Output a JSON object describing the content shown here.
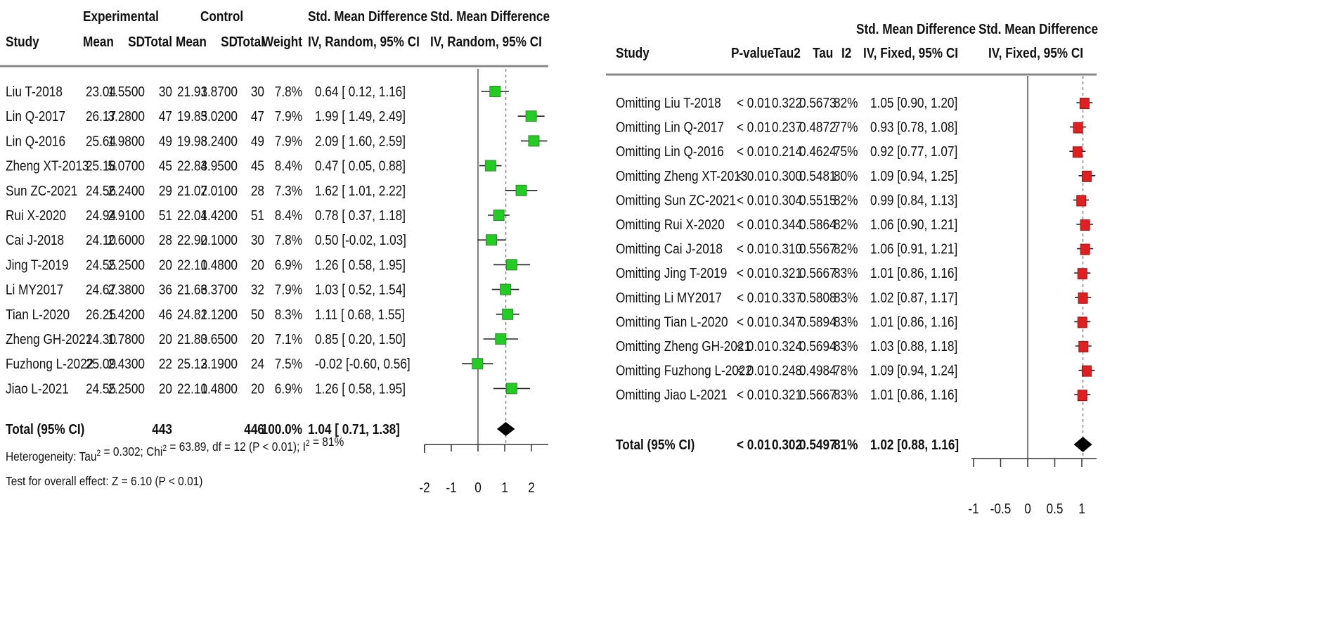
{
  "left": {
    "headers": {
      "experimental": "Experimental",
      "control": "Control",
      "smd_top": "Std. Mean Difference",
      "smd_sub": "IV, Random, 95% CI",
      "plot_top": "Std. Mean Difference",
      "plot_sub": "IV, Random, 95% CI",
      "study": "Study",
      "mean": "Mean",
      "sd": "SD",
      "total": "Total",
      "c_mean": "Mean",
      "c_sd": "SD",
      "c_total": "Total",
      "weight": "Weight"
    },
    "studies": [
      {
        "study": "Liu T-2018",
        "e_mean": "23.04",
        "e_sd": "1.5500",
        "e_n": "30",
        "c_mean": "21.93",
        "c_sd": "1.8700",
        "c_n": "30",
        "weight": "7.8%",
        "ci_text": "0.64 [ 0.12, 1.16]",
        "smd": 0.64,
        "lo": 0.12,
        "hi": 1.16
      },
      {
        "study": "Lin Q-2017",
        "e_mean": "26.17",
        "e_sd": "3.2800",
        "e_n": "47",
        "c_mean": "19.85",
        "c_sd": "3.0200",
        "c_n": "47",
        "weight": "7.9%",
        "ci_text": "1.99 [ 1.49, 2.49]",
        "smd": 1.99,
        "lo": 1.49,
        "hi": 2.49
      },
      {
        "study": "Lin Q-2016",
        "e_mean": "25.64",
        "e_sd": "1.9800",
        "e_n": "49",
        "c_mean": "19.98",
        "c_sd": "3.2400",
        "c_n": "49",
        "weight": "7.9%",
        "ci_text": "2.09 [ 1.60, 2.59]",
        "smd": 2.09,
        "lo": 1.6,
        "hi": 2.59
      },
      {
        "study": "Zheng XT-2013",
        "e_mean": "25.18",
        "e_sd": "5.0700",
        "e_n": "45",
        "c_mean": "22.83",
        "c_sd": "4.9500",
        "c_n": "45",
        "weight": "8.4%",
        "ci_text": "0.47 [ 0.05, 0.88]",
        "smd": 0.47,
        "lo": 0.05,
        "hi": 0.88
      },
      {
        "study": "Sun ZC-2021",
        "e_mean": "24.56",
        "e_sd": "2.2400",
        "e_n": "29",
        "c_mean": "21.07",
        "c_sd": "2.0100",
        "c_n": "28",
        "weight": "7.3%",
        "ci_text": "1.62 [ 1.01, 2.22]",
        "smd": 1.62,
        "lo": 1.01,
        "hi": 2.22
      },
      {
        "study": "Rui X-2020",
        "e_mean": "24.94",
        "e_sd": "2.9100",
        "e_n": "51",
        "c_mean": "22.01",
        "c_sd": "4.4200",
        "c_n": "51",
        "weight": "8.4%",
        "ci_text": "0.78 [ 0.37, 1.18]",
        "smd": 0.78,
        "lo": 0.37,
        "hi": 1.18
      },
      {
        "study": "Cai J-2018",
        "e_mean": "24.10",
        "e_sd": "2.6000",
        "e_n": "28",
        "c_mean": "22.90",
        "c_sd": "2.1000",
        "c_n": "30",
        "weight": "7.8%",
        "ci_text": "0.50 [-0.02, 1.03]",
        "smd": 0.5,
        "lo": -0.02,
        "hi": 1.03
      },
      {
        "study": "Jing T-2019",
        "e_mean": "24.55",
        "e_sd": "2.2500",
        "e_n": "20",
        "c_mean": "22.10",
        "c_sd": "1.4800",
        "c_n": "20",
        "weight": "6.9%",
        "ci_text": "1.26 [ 0.58, 1.95]",
        "smd": 1.26,
        "lo": 0.58,
        "hi": 1.95
      },
      {
        "study": "Li MY2017",
        "e_mean": "24.67",
        "e_sd": "2.3800",
        "e_n": "36",
        "c_mean": "21.66",
        "c_sd": "3.3700",
        "c_n": "32",
        "weight": "7.9%",
        "ci_text": "1.03 [ 0.52, 1.54]",
        "smd": 1.03,
        "lo": 0.52,
        "hi": 1.54
      },
      {
        "study": "Tian L-2020",
        "e_mean": "26.25",
        "e_sd": "1.4200",
        "e_n": "46",
        "c_mean": "24.82",
        "c_sd": "1.1200",
        "c_n": "50",
        "weight": "8.3%",
        "ci_text": "1.11 [ 0.68, 1.55]",
        "smd": 1.11,
        "lo": 0.68,
        "hi": 1.55
      },
      {
        "study": "Zheng GH-2021",
        "e_mean": "24.30",
        "e_sd": "1.7800",
        "e_n": "20",
        "c_mean": "21.80",
        "c_sd": "3.6500",
        "c_n": "20",
        "weight": "7.1%",
        "ci_text": "0.85 [ 0.20, 1.50]",
        "smd": 0.85,
        "lo": 0.2,
        "hi": 1.5
      },
      {
        "study": "Fuzhong L-2022",
        "e_mean": "25.09",
        "e_sd": "2.4300",
        "e_n": "22",
        "c_mean": "25.13",
        "c_sd": "2.1900",
        "c_n": "24",
        "weight": "7.5%",
        "ci_text": "-0.02 [-0.60, 0.56]",
        "smd": -0.02,
        "lo": -0.6,
        "hi": 0.56
      },
      {
        "study": "Jiao L-2021",
        "e_mean": "24.55",
        "e_sd": "2.2500",
        "e_n": "20",
        "c_mean": "22.10",
        "c_sd": "1.4800",
        "c_n": "20",
        "weight": "6.9%",
        "ci_text": "1.26 [ 0.58, 1.95]",
        "smd": 1.26,
        "lo": 0.58,
        "hi": 1.95
      }
    ],
    "total": {
      "label": "Total (95% CI)",
      "e_n": "443",
      "c_n": "446",
      "weight": "100.0%",
      "ci_text": "1.04 [ 0.71, 1.38]",
      "smd": 1.04,
      "lo": 0.71,
      "hi": 1.38
    },
    "heterogeneity": "Heterogeneity: Tau² = 0.302; Chi² = 63.89, df = 12 (P < 0.01); I² = 81%",
    "overall": "Test for overall effect: Z = 6.10 (P < 0.01)",
    "axis": {
      "ticks": [
        -2,
        -1,
        0,
        1,
        2
      ],
      "tick_labels": [
        "-2",
        "-1",
        "0",
        "1",
        "2"
      ]
    },
    "color": "#22cc22"
  },
  "right": {
    "headers": {
      "study": "Study",
      "p": "P-value",
      "tau2": "Tau2",
      "tau": "Tau",
      "i2": "I2",
      "smd_top": "Std. Mean Difference",
      "smd_sub": "IV, Fixed, 95% CI",
      "plot_top": "Std. Mean Difference",
      "plot_sub": "IV, Fixed, 95% CI"
    },
    "studies": [
      {
        "study": "Omitting Liu T-2018",
        "p": "< 0.01",
        "tau2": "0.322",
        "tau": "0.5673",
        "i2": "82%",
        "ci_text": "1.05 [0.90, 1.20]",
        "smd": 1.05,
        "lo": 0.9,
        "hi": 1.2
      },
      {
        "study": "Omitting Lin Q-2017",
        "p": "< 0.01",
        "tau2": "0.237",
        "tau": "0.4872",
        "i2": "77%",
        "ci_text": "0.93 [0.78, 1.08]",
        "smd": 0.93,
        "lo": 0.78,
        "hi": 1.08
      },
      {
        "study": "Omitting Lin Q-2016",
        "p": "< 0.01",
        "tau2": "0.214",
        "tau": "0.4624",
        "i2": "75%",
        "ci_text": "0.92 [0.77, 1.07]",
        "smd": 0.92,
        "lo": 0.77,
        "hi": 1.07
      },
      {
        "study": "Omitting Zheng XT-2013",
        "p": "< 0.01",
        "tau2": "0.300",
        "tau": "0.5481",
        "i2": "80%",
        "ci_text": "1.09 [0.94, 1.25]",
        "smd": 1.09,
        "lo": 0.94,
        "hi": 1.25
      },
      {
        "study": "Omitting Sun ZC-2021",
        "p": "< 0.01",
        "tau2": "0.304",
        "tau": "0.5515",
        "i2": "82%",
        "ci_text": "0.99 [0.84, 1.13]",
        "smd": 0.99,
        "lo": 0.84,
        "hi": 1.13
      },
      {
        "study": "Omitting Rui X-2020",
        "p": "< 0.01",
        "tau2": "0.344",
        "tau": "0.5864",
        "i2": "82%",
        "ci_text": "1.06 [0.90, 1.21]",
        "smd": 1.06,
        "lo": 0.9,
        "hi": 1.21
      },
      {
        "study": "Omitting Cai J-2018",
        "p": "< 0.01",
        "tau2": "0.310",
        "tau": "0.5567",
        "i2": "82%",
        "ci_text": "1.06 [0.91, 1.21]",
        "smd": 1.06,
        "lo": 0.91,
        "hi": 1.21
      },
      {
        "study": "Omitting Jing T-2019",
        "p": "< 0.01",
        "tau2": "0.321",
        "tau": "0.5667",
        "i2": "83%",
        "ci_text": "1.01 [0.86, 1.16]",
        "smd": 1.01,
        "lo": 0.86,
        "hi": 1.16
      },
      {
        "study": "Omitting Li MY2017",
        "p": "< 0.01",
        "tau2": "0.337",
        "tau": "0.5808",
        "i2": "83%",
        "ci_text": "1.02 [0.87, 1.17]",
        "smd": 1.02,
        "lo": 0.87,
        "hi": 1.17
      },
      {
        "study": "Omitting Tian L-2020",
        "p": "< 0.01",
        "tau2": "0.347",
        "tau": "0.5894",
        "i2": "83%",
        "ci_text": "1.01 [0.86, 1.16]",
        "smd": 1.01,
        "lo": 0.86,
        "hi": 1.16
      },
      {
        "study": "Omitting Zheng GH-2021",
        "p": "< 0.01",
        "tau2": "0.324",
        "tau": "0.5694",
        "i2": "83%",
        "ci_text": "1.03 [0.88, 1.18]",
        "smd": 1.03,
        "lo": 0.88,
        "hi": 1.18
      },
      {
        "study": "Omitting Fuzhong L-2022",
        "p": "< 0.01",
        "tau2": "0.248",
        "tau": "0.4984",
        "i2": "78%",
        "ci_text": "1.09 [0.94, 1.24]",
        "smd": 1.09,
        "lo": 0.94,
        "hi": 1.24
      },
      {
        "study": "Omitting Jiao L-2021",
        "p": "< 0.01",
        "tau2": "0.321",
        "tau": "0.5667",
        "i2": "83%",
        "ci_text": "1.01 [0.86, 1.16]",
        "smd": 1.01,
        "lo": 0.86,
        "hi": 1.16
      }
    ],
    "total": {
      "label": "Total (95% CI)",
      "p": "< 0.01",
      "tau2": "0.302",
      "tau": "0.5497",
      "i2": "81%",
      "ci_text": "1.02 [0.88, 1.16]",
      "smd": 1.02,
      "lo": 0.88,
      "hi": 1.16
    },
    "axis": {
      "ticks": [
        -1,
        -0.5,
        0,
        0.5,
        1
      ],
      "tick_labels": [
        "-1",
        "-0.5",
        "0",
        "0.5",
        "1"
      ]
    },
    "color": "#e02020"
  },
  "chart_data": [
    {
      "type": "forest",
      "scale": "Std. Mean Difference (IV, Random, 95% CI)",
      "xlim": [
        -2,
        2
      ],
      "categories": [
        "Liu T-2018",
        "Lin Q-2017",
        "Lin Q-2016",
        "Zheng XT-2013",
        "Sun ZC-2021",
        "Rui X-2020",
        "Cai J-2018",
        "Jing T-2019",
        "Li MY2017",
        "Tian L-2020",
        "Zheng GH-2021",
        "Fuzhong L-2022",
        "Jiao L-2021",
        "Total (95% CI)"
      ],
      "values": [
        0.64,
        1.99,
        2.09,
        0.47,
        1.62,
        0.78,
        0.5,
        1.26,
        1.03,
        1.11,
        0.85,
        -0.02,
        1.26,
        1.04
      ],
      "ci_low": [
        0.12,
        1.49,
        1.6,
        0.05,
        1.01,
        0.37,
        -0.02,
        0.58,
        0.52,
        0.68,
        0.2,
        -0.6,
        0.58,
        0.71
      ],
      "ci_high": [
        1.16,
        2.49,
        2.59,
        0.88,
        2.22,
        1.18,
        1.03,
        1.95,
        1.54,
        1.55,
        1.5,
        0.56,
        1.95,
        1.38
      ]
    },
    {
      "type": "forest",
      "scale": "Std. Mean Difference (IV, Fixed, 95% CI)",
      "xlim": [
        -1,
        1
      ],
      "categories": [
        "Omitting Liu T-2018",
        "Omitting Lin Q-2017",
        "Omitting Lin Q-2016",
        "Omitting Zheng XT-2013",
        "Omitting Sun ZC-2021",
        "Omitting Rui X-2020",
        "Omitting Cai J-2018",
        "Omitting Jing T-2019",
        "Omitting Li MY2017",
        "Omitting Tian L-2020",
        "Omitting Zheng GH-2021",
        "Omitting Fuzhong L-2022",
        "Omitting Jiao L-2021",
        "Total (95% CI)"
      ],
      "values": [
        1.05,
        0.93,
        0.92,
        1.09,
        0.99,
        1.06,
        1.06,
        1.01,
        1.02,
        1.01,
        1.03,
        1.09,
        1.01,
        1.02
      ],
      "ci_low": [
        0.9,
        0.78,
        0.77,
        0.94,
        0.84,
        0.9,
        0.91,
        0.86,
        0.87,
        0.86,
        0.88,
        0.94,
        0.86,
        0.88
      ],
      "ci_high": [
        1.2,
        1.08,
        1.07,
        1.25,
        1.13,
        1.21,
        1.21,
        1.16,
        1.17,
        1.16,
        1.18,
        1.24,
        1.16,
        1.16
      ]
    }
  ]
}
